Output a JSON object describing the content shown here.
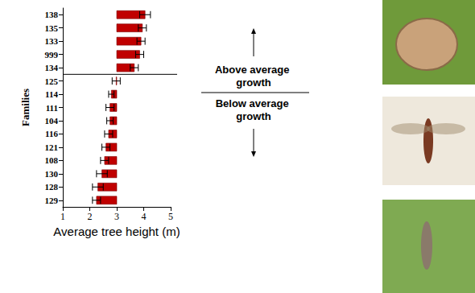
{
  "chart_data": {
    "type": "bar",
    "orientation": "horizontal",
    "categories": [
      "138",
      "135",
      "133",
      "999",
      "134",
      "125",
      "114",
      "111",
      "104",
      "116",
      "121",
      "108",
      "130",
      "128",
      "129"
    ],
    "values": [
      4.05,
      3.95,
      3.9,
      3.85,
      3.65,
      2.98,
      2.8,
      2.75,
      2.75,
      2.7,
      2.6,
      2.55,
      2.45,
      2.3,
      2.25
    ],
    "errors": [
      0.2,
      0.15,
      0.15,
      0.15,
      0.15,
      0.15,
      0.1,
      0.15,
      0.12,
      0.15,
      0.15,
      0.15,
      0.2,
      0.2,
      0.15
    ],
    "base": 3,
    "color": "#c00000",
    "xlim": [
      1,
      5
    ],
    "xticks": [
      1,
      2,
      3,
      4,
      5
    ],
    "x_label": "Average tree height (m)",
    "y_label": "Families",
    "annotations": [
      "Above average growth",
      "Below average growth"
    ],
    "grid": false
  }
}
